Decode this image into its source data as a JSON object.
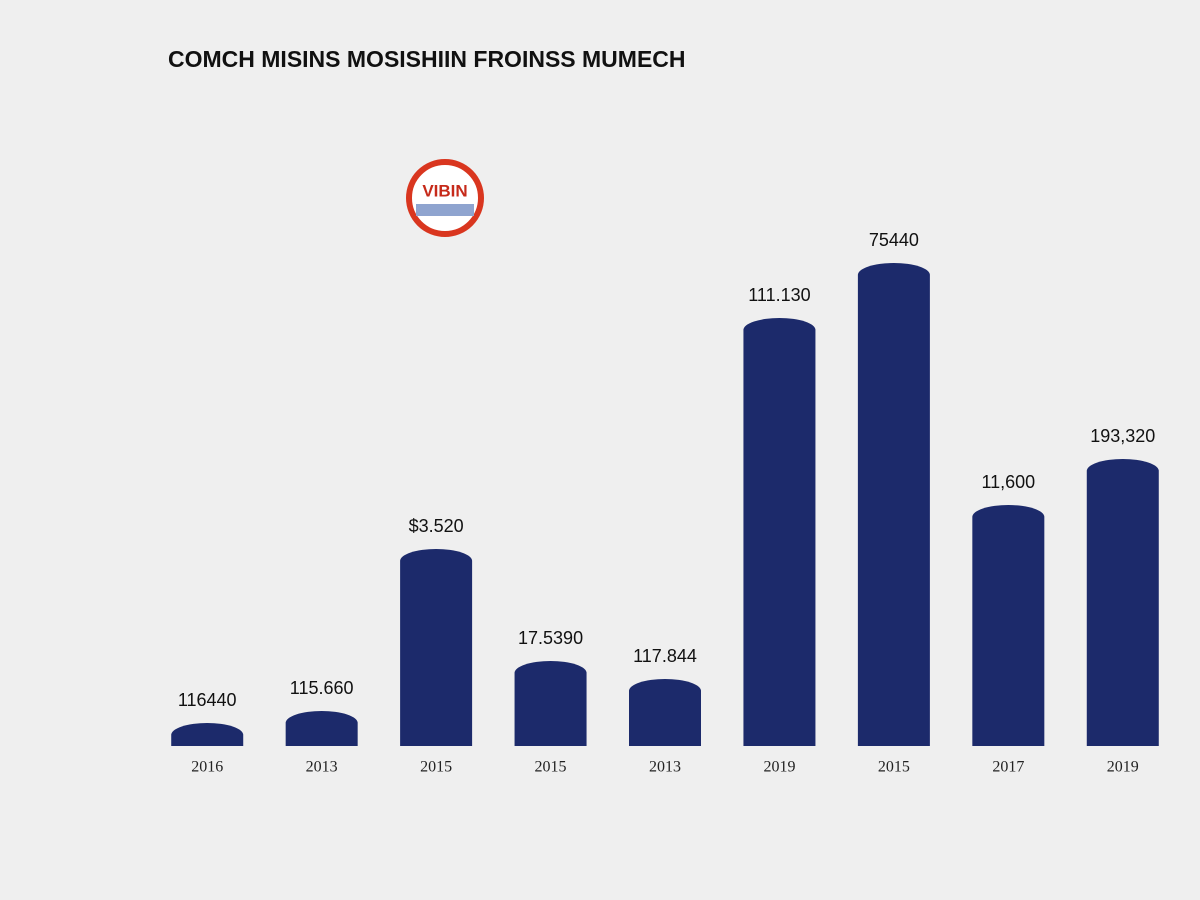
{
  "chart_data": {
    "type": "bar",
    "title": "COMCH MISINS MOSISHIIN FROINSS MUMECH",
    "logo": "VIBIN",
    "categories": [
      "2016",
      "2013",
      "2015",
      "2015",
      "2013",
      "2019",
      "2015",
      "2017",
      "2019"
    ],
    "values": [
      23,
      35,
      197,
      85,
      67,
      428,
      483,
      241,
      287
    ],
    "annotations": [
      "116440",
      "115.660",
      "$3.520",
      "17.5390",
      "117.844",
      "111.130",
      "75440",
      "11,600",
      "193,320"
    ],
    "color": "#1c2a6b",
    "ylim": [
      0,
      500
    ]
  }
}
